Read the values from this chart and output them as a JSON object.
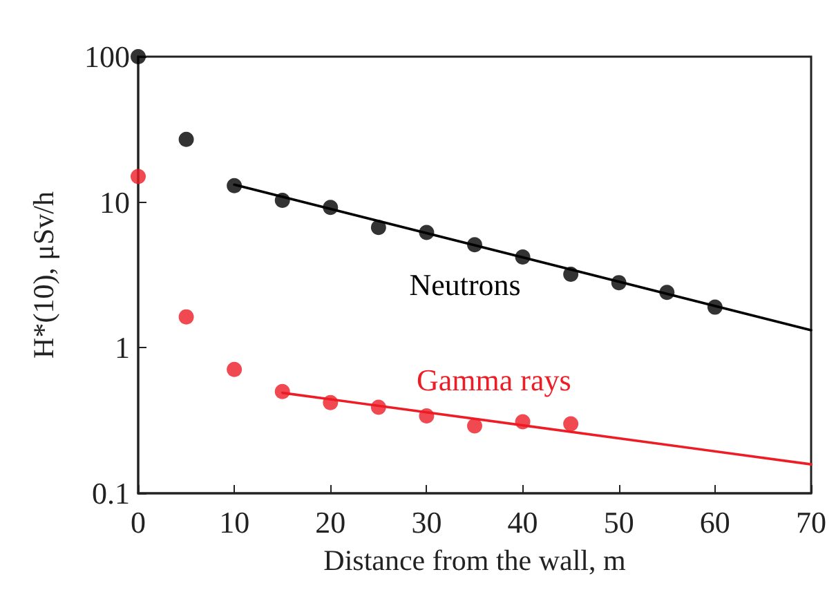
{
  "chart_data": {
    "type": "scatter",
    "xlabel": "Distance from the wall, m",
    "ylabel": "H*(10), μSv/h",
    "log": "y",
    "xlim": [
      0,
      70
    ],
    "xticks": [
      0,
      10,
      20,
      30,
      40,
      50,
      60,
      70
    ],
    "ylim": [
      0.1,
      100
    ],
    "yticks": [
      0.1,
      1,
      10,
      100
    ],
    "grid": false,
    "marker": "circle",
    "series": [
      {
        "color": "#000000",
        "x": [
          0,
          5,
          10,
          15,
          20,
          25,
          30,
          35,
          40,
          45,
          50,
          55,
          60
        ],
        "values": [
          100,
          27,
          13,
          10.3,
          9.2,
          6.7,
          6.2,
          5.1,
          4.2,
          3.2,
          2.8,
          2.4,
          1.9
        ]
      },
      {
        "color": "#ee1c25",
        "x": [
          0,
          5,
          10,
          15,
          20,
          25,
          30,
          35,
          40,
          45
        ],
        "values": [
          15,
          1.63,
          0.71,
          0.5,
          0.42,
          0.39,
          0.34,
          0.29,
          0.31,
          0.3
        ]
      },
      {
        "type": "line",
        "name": "Neutrons",
        "color": "#000000",
        "marker": "none",
        "line_style": "solid",
        "x": [
          10,
          70
        ],
        "values": [
          13.2,
          1.32
        ]
      },
      {
        "type": "line",
        "name": "Gamma rays",
        "color": "#ee1c25",
        "marker": "none",
        "line_style": "solid",
        "x": [
          15,
          70
        ],
        "values": [
          0.49,
          0.158
        ]
      }
    ]
  }
}
